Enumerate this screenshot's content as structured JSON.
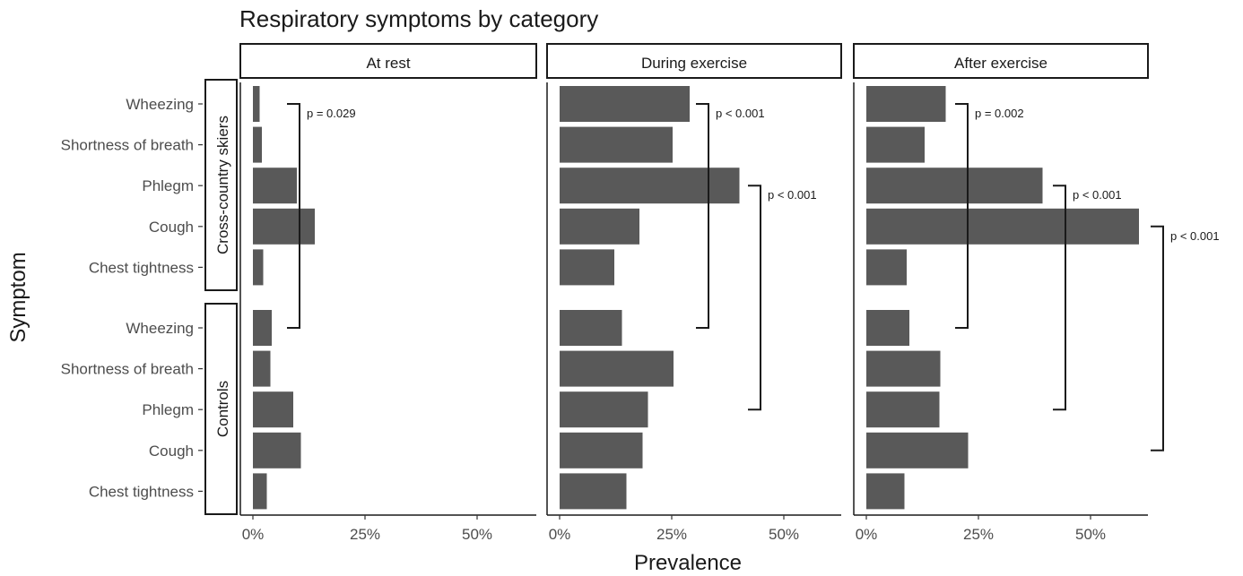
{
  "chart_data": {
    "type": "bar",
    "orientation": "horizontal",
    "title": "Respiratory symptoms by category",
    "xlabel": "Prevalence",
    "ylabel": "Symptom",
    "xlim": [
      0,
      0.63
    ],
    "x_ticks": [
      0,
      0.25,
      0.5
    ],
    "x_tick_labels": [
      "0%",
      "25%",
      "50%"
    ],
    "grid": false,
    "facets": [
      "At rest",
      "During exercise",
      "After exercise"
    ],
    "groups": [
      {
        "name": "Cross-country skiers",
        "categories": [
          "Wheezing",
          "Shortness of breath",
          "Phlegm",
          "Cough",
          "Chest tightness"
        ]
      },
      {
        "name": "Controls",
        "categories": [
          "Wheezing",
          "Shortness of breath",
          "Phlegm",
          "Cough",
          "Chest tightness"
        ]
      }
    ],
    "series": [
      {
        "facet": "At rest",
        "values": {
          "Cross-country skiers": [
            0.015,
            0.02,
            0.098,
            0.138,
            0.023
          ],
          "Controls": [
            0.042,
            0.039,
            0.09,
            0.107,
            0.031
          ]
        }
      },
      {
        "facet": "During exercise",
        "values": {
          "Cross-country skiers": [
            0.29,
            0.252,
            0.401,
            0.178,
            0.122
          ],
          "Controls": [
            0.139,
            0.254,
            0.197,
            0.185,
            0.149
          ]
        }
      },
      {
        "facet": "After exercise",
        "values": {
          "Cross-country skiers": [
            0.177,
            0.13,
            0.393,
            0.608,
            0.09
          ],
          "Controls": [
            0.096,
            0.165,
            0.163,
            0.227,
            0.085
          ]
        }
      }
    ],
    "annotations": [
      {
        "facet": "At rest",
        "label": "p = 0.029",
        "from": "Cross-country skiers|Wheezing",
        "to": "Controls|Wheezing"
      },
      {
        "facet": "During exercise",
        "label": "p < 0.001",
        "from": "Cross-country skiers|Wheezing",
        "to": "Controls|Wheezing"
      },
      {
        "facet": "During exercise",
        "label": "p < 0.001",
        "from": "Cross-country skiers|Phlegm",
        "to": "Controls|Phlegm"
      },
      {
        "facet": "After exercise",
        "label": "p = 0.002",
        "from": "Cross-country skiers|Wheezing",
        "to": "Controls|Wheezing"
      },
      {
        "facet": "After exercise",
        "label": "p < 0.001",
        "from": "Cross-country skiers|Phlegm",
        "to": "Controls|Phlegm"
      },
      {
        "facet": "After exercise",
        "label": "p < 0.001",
        "from": "Cross-country skiers|Cough",
        "to": "Controls|Cough"
      }
    ],
    "colors": {
      "bar": "#595959",
      "axis": "#1a1a1a"
    }
  }
}
